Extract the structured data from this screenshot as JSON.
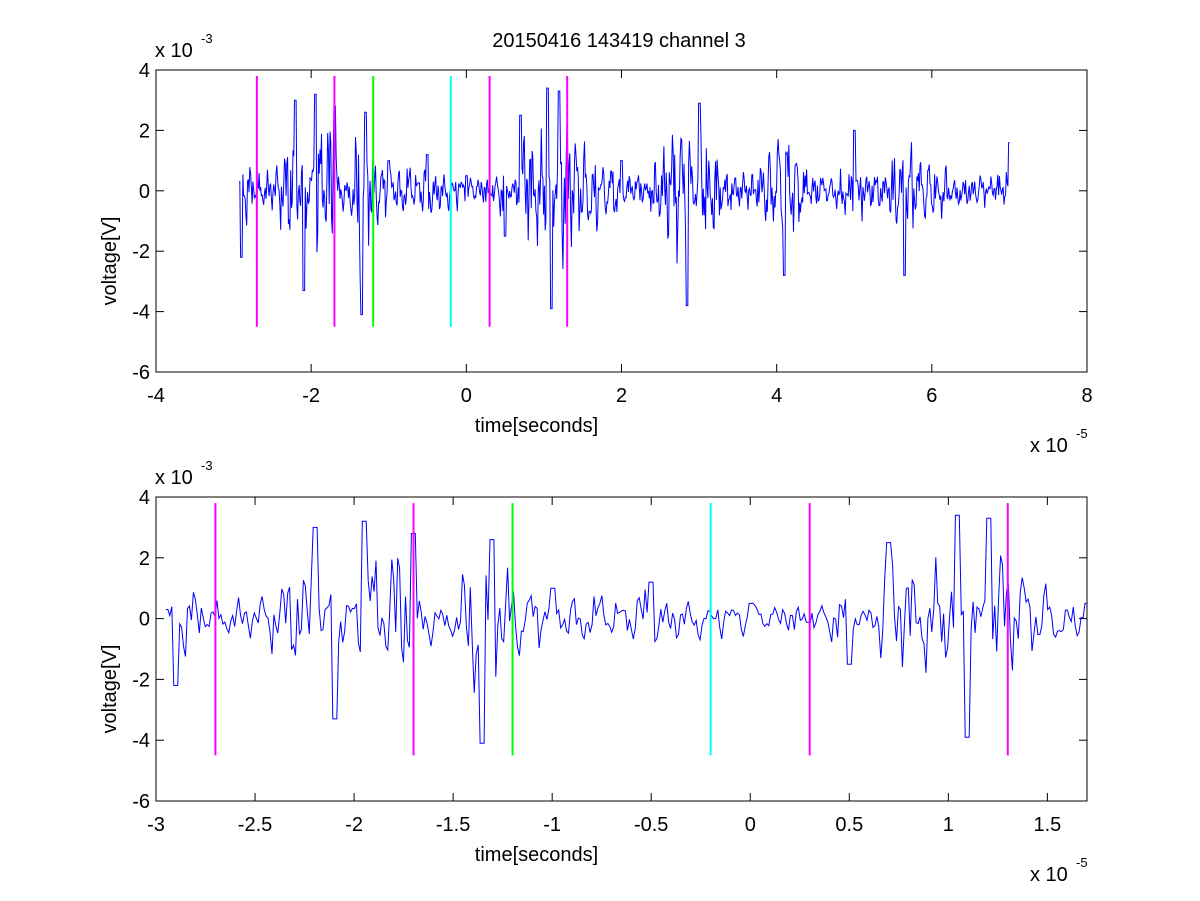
{
  "figure": {
    "title": "20150416 143419 channel 3"
  },
  "chart_data": [
    {
      "type": "line",
      "title": "20150416 143419 channel 3",
      "xlabel": "time[seconds]",
      "ylabel": "voltage[V]",
      "x_exponent_label": "x 10",
      "x_exponent": "-5",
      "y_exponent_label": "x 10",
      "y_exponent": "-3",
      "xlim": [
        -4,
        8
      ],
      "ylim": [
        -6,
        4
      ],
      "xticks": [
        -4,
        -2,
        0,
        2,
        4,
        6,
        8
      ],
      "xtick_labels": [
        "-4",
        "-2",
        "0",
        "2",
        "4",
        "6",
        "8"
      ],
      "yticks": [
        -6,
        -4,
        -2,
        0,
        2,
        4
      ],
      "ytick_labels": [
        "-6",
        "-4",
        "-2",
        "0",
        "2",
        "4"
      ],
      "grid": false,
      "series": [
        {
          "color": "#0000ff",
          "x_range": [
            -2.93,
            7.0
          ],
          "points": 1000,
          "envelope": [
            [
              -2.93,
              0.3
            ],
            [
              -2.9,
              -2.2
            ],
            [
              -2.2,
              3.0
            ],
            [
              -2.1,
              -3.3
            ],
            [
              -1.95,
              3.2
            ],
            [
              -1.7,
              2.8
            ],
            [
              -1.35,
              -4.1
            ],
            [
              -1.3,
              2.6
            ],
            [
              -1.0,
              1.0
            ],
            [
              -0.5,
              1.2
            ],
            [
              0.0,
              0.5
            ],
            [
              0.5,
              -1.5
            ],
            [
              0.7,
              2.5
            ],
            [
              1.05,
              3.4
            ],
            [
              1.1,
              -3.9
            ],
            [
              1.2,
              3.3
            ],
            [
              2.0,
              1.0
            ],
            [
              2.85,
              -3.8
            ],
            [
              3.0,
              2.9
            ],
            [
              4.1,
              -2.8
            ],
            [
              5.0,
              2.0
            ],
            [
              5.65,
              -2.8
            ],
            [
              7.0,
              1.6
            ]
          ]
        }
      ],
      "markers": [
        {
          "x": -2.7,
          "color": "#ff00ff"
        },
        {
          "x": -1.7,
          "color": "#ff00ff"
        },
        {
          "x": -1.2,
          "color": "#00ff00"
        },
        {
          "x": -0.2,
          "color": "#00ffff"
        },
        {
          "x": 0.3,
          "color": "#ff00ff"
        },
        {
          "x": 1.3,
          "color": "#ff00ff"
        }
      ],
      "marker_range": [
        -4.5,
        3.8
      ]
    },
    {
      "type": "line",
      "title": "",
      "xlabel": "time[seconds]",
      "ylabel": "voltage[V]",
      "x_exponent_label": "x 10",
      "x_exponent": "-5",
      "y_exponent_label": "x 10",
      "y_exponent": "-3",
      "xlim": [
        -3.0,
        1.7
      ],
      "ylim": [
        -6,
        4
      ],
      "xticks": [
        -3,
        -2.5,
        -2,
        -1.5,
        -1,
        -0.5,
        0,
        0.5,
        1,
        1.5
      ],
      "xtick_labels": [
        "-3",
        "-2.5",
        "-2",
        "-1.5",
        "-1",
        "-0.5",
        "0",
        "0.5",
        "1",
        "1.5"
      ],
      "yticks": [
        -6,
        -4,
        -2,
        0,
        2,
        4
      ],
      "ytick_labels": [
        "-6",
        "-4",
        "-2",
        "0",
        "2",
        "4"
      ],
      "grid": false,
      "series": [
        {
          "color": "#0000ff",
          "x_range": [
            -2.95,
            1.7
          ],
          "points": 470,
          "envelope": [
            [
              -2.95,
              0.3
            ],
            [
              -2.9,
              -2.2
            ],
            [
              -2.2,
              3.0
            ],
            [
              -2.1,
              -3.3
            ],
            [
              -1.95,
              3.2
            ],
            [
              -1.7,
              2.8
            ],
            [
              -1.35,
              -4.1
            ],
            [
              -1.3,
              2.6
            ],
            [
              -1.0,
              1.0
            ],
            [
              -0.5,
              1.2
            ],
            [
              0.0,
              0.5
            ],
            [
              0.5,
              -1.5
            ],
            [
              0.7,
              2.5
            ],
            [
              1.05,
              3.4
            ],
            [
              1.1,
              -3.9
            ],
            [
              1.2,
              3.3
            ],
            [
              1.7,
              0.5
            ]
          ]
        }
      ],
      "markers": [
        {
          "x": -2.7,
          "color": "#ff00ff"
        },
        {
          "x": -1.7,
          "color": "#ff00ff"
        },
        {
          "x": -1.2,
          "color": "#00ff00"
        },
        {
          "x": -0.2,
          "color": "#00ffff"
        },
        {
          "x": 0.3,
          "color": "#ff00ff"
        },
        {
          "x": 1.3,
          "color": "#ff00ff"
        }
      ],
      "marker_range": [
        -4.5,
        3.8
      ]
    }
  ]
}
